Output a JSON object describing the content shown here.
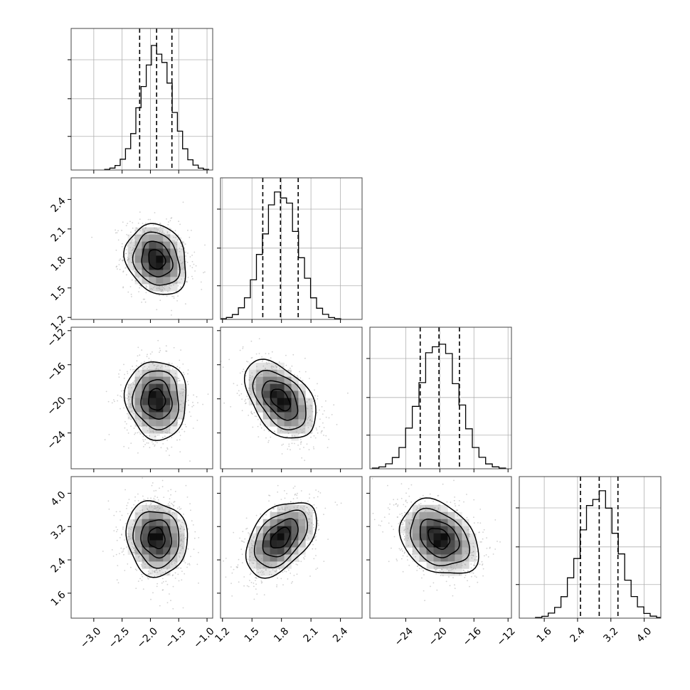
{
  "chart_data": {
    "type": "corner",
    "n_params": 4,
    "grid": true,
    "colors": {
      "line": "#000000",
      "grid": "#b0b0b0",
      "points": "#9a9a9a",
      "density_dark": "#111111"
    },
    "params": [
      {
        "range": [
          -3.4,
          -0.9
        ],
        "ticks": [
          -3.0,
          -2.5,
          -2.0,
          -1.5,
          -1.0
        ],
        "tick_labels": [
          "−3.0",
          "−2.5",
          "−2.0",
          "−1.5",
          "−1.0"
        ],
        "quantiles": [
          -2.19,
          -1.89,
          -1.62
        ],
        "mean": -1.89,
        "sd": 0.27
      },
      {
        "range": [
          1.18,
          2.62
        ],
        "ticks": [
          1.2,
          1.5,
          1.8,
          2.1,
          2.4
        ],
        "tick_labels": [
          "1.2",
          "1.5",
          "1.8",
          "2.1",
          "2.4"
        ],
        "quantiles": [
          1.61,
          1.79,
          1.97
        ],
        "mean": 1.79,
        "sd": 0.18
      },
      {
        "range": [
          -28.2,
          -11.6
        ],
        "ticks": [
          -24,
          -20,
          -16,
          -12
        ],
        "tick_labels": [
          "−24",
          "−20",
          "−16",
          "−12"
        ],
        "quantiles": [
          -22.3,
          -20.1,
          -17.7
        ],
        "mean": -20.1,
        "sd": 2.3
      },
      {
        "range": [
          1.0,
          4.4
        ],
        "ticks": [
          1.6,
          2.4,
          3.2,
          4.0
        ],
        "tick_labels": [
          "1.6",
          "2.4",
          "3.2",
          "4.0"
        ],
        "quantiles": [
          2.47,
          2.92,
          3.37
        ],
        "mean": 2.92,
        "sd": 0.45
      }
    ],
    "histogram_peaks": [
      1.0,
      1.0,
      1.0,
      1.0
    ],
    "correlations": [
      [
        1.0,
        -0.18,
        -0.05,
        -0.08
      ],
      [
        -0.18,
        1.0,
        -0.45,
        0.45
      ],
      [
        -0.05,
        -0.45,
        1.0,
        -0.3
      ],
      [
        -0.08,
        0.45,
        -0.3,
        1.0
      ]
    ],
    "contour_sigma_levels": [
      0.5,
      1.0,
      1.5,
      2.0
    ]
  }
}
